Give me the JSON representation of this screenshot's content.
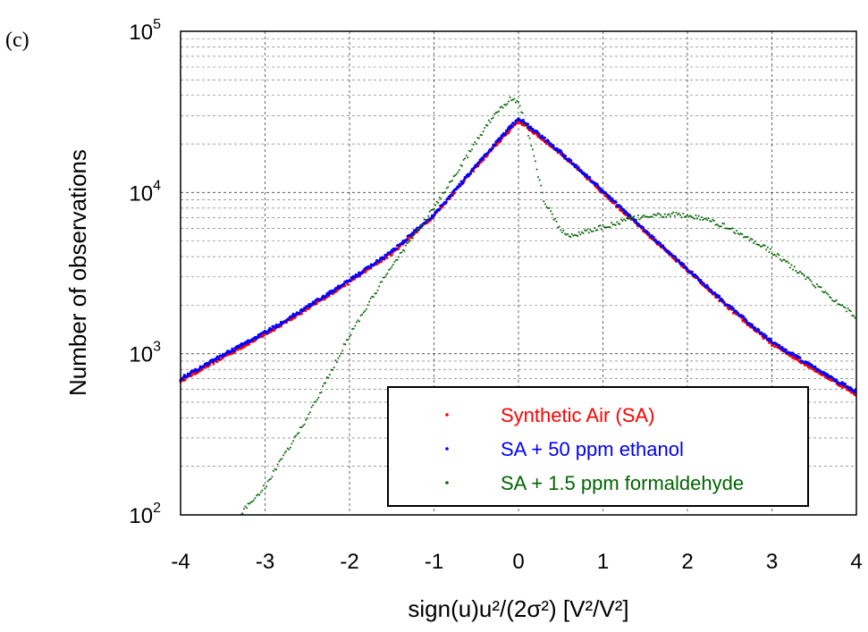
{
  "chart_data": {
    "type": "scatter",
    "panel_label": "(c)",
    "xlabel": "sign(u)u²/(2σ²) [V²/V²]",
    "ylabel": "Number of observations",
    "xlim": [
      -4,
      4
    ],
    "ylim": [
      100,
      100000
    ],
    "y_scale": "log",
    "grid": true,
    "legend_position": "bottom-right",
    "x_ticks": [
      "-4",
      "-3",
      "-2",
      "-1",
      "0",
      "1",
      "2",
      "3",
      "4"
    ],
    "y_ticks": [
      {
        "base": "10",
        "exp": "2"
      },
      {
        "base": "10",
        "exp": "3"
      },
      {
        "base": "10",
        "exp": "4"
      },
      {
        "base": "10",
        "exp": "5"
      }
    ],
    "series": [
      {
        "name": "Synthetic Air (SA)",
        "color": "#ff0000",
        "x": [
          -4,
          -3.5,
          -3,
          -2.5,
          -2,
          -1.5,
          -1,
          -0.5,
          0,
          0.5,
          1,
          1.5,
          2,
          2.5,
          3,
          3.5,
          4
        ],
        "y": [
          680,
          950,
          1320,
          1900,
          2800,
          4200,
          7200,
          14500,
          28000,
          17500,
          10000,
          5700,
          3300,
          1900,
          1150,
          800,
          560
        ]
      },
      {
        "name": "SA + 50 ppm ethanol",
        "color": "#0000ff",
        "x": [
          -4,
          -3.5,
          -3,
          -2.5,
          -2,
          -1.5,
          -1,
          -0.5,
          0,
          0.5,
          1,
          1.5,
          2,
          2.5,
          3,
          3.5,
          4
        ],
        "y": [
          700,
          980,
          1350,
          1950,
          2850,
          4300,
          7300,
          14700,
          29000,
          17800,
          10200,
          5800,
          3350,
          1950,
          1180,
          820,
          580
        ]
      },
      {
        "name": "SA + 1.5 ppm formaldehyde",
        "color": "#006400",
        "x": [
          -3.3,
          -3,
          -2.5,
          -2,
          -1.5,
          -1,
          -0.6,
          -0.3,
          -0.1,
          0,
          0.15,
          0.3,
          0.5,
          0.6,
          0.8,
          1,
          1.3,
          1.5,
          1.8,
          2,
          2.3,
          2.5,
          3,
          3.5,
          4
        ],
        "y": [
          100,
          150,
          400,
          1300,
          3500,
          8000,
          17000,
          30000,
          38000,
          37000,
          20000,
          9000,
          5800,
          5400,
          5700,
          6100,
          6800,
          7100,
          7300,
          7200,
          6600,
          6000,
          4300,
          2700,
          1700
        ]
      }
    ]
  }
}
